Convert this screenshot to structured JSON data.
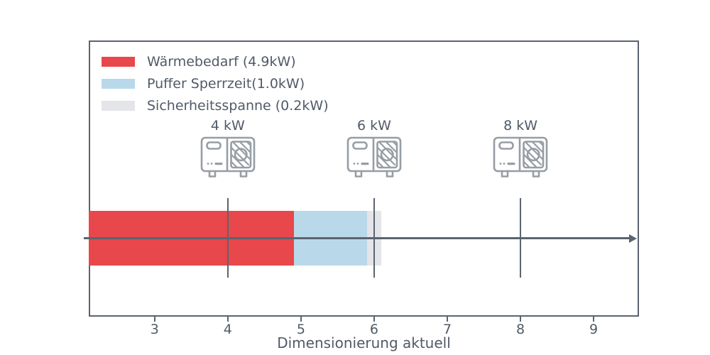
{
  "chart_data": {
    "type": "bar",
    "orientation": "horizontal",
    "stacked": true,
    "title": "",
    "xlabel": "Dimensionierung aktuell",
    "ylabel": "",
    "xlim": [
      2.1,
      9.62
    ],
    "xticks": [
      3,
      4,
      5,
      6,
      7,
      8,
      9
    ],
    "grid": false,
    "legend_position": "upper left",
    "bar": {
      "start": 2.1,
      "segments": [
        {
          "name": "Wärmebedarf",
          "value_kw": 4.9,
          "end": 4.9,
          "label": "Wärmebedarf (4.9kW)",
          "color": "#e8474b"
        },
        {
          "name": "Puffer Sperrzeit",
          "value_kw": 1.0,
          "end": 5.9,
          "label": "Puffer Sperrzeit(1.0kW)",
          "color": "#b9d9ea"
        },
        {
          "name": "Sicherheitsspanne",
          "value_kw": 0.2,
          "end": 6.1,
          "label": "Sicherheitsspanne (0.2kW)",
          "color": "#e3e5e9"
        }
      ]
    },
    "markers": [
      {
        "value": 4,
        "label": "4 kW",
        "icon": "heat-pump-outdoor-unit"
      },
      {
        "value": 6,
        "label": "6 kW",
        "icon": "heat-pump-outdoor-unit"
      },
      {
        "value": 8,
        "label": "8 kW",
        "icon": "heat-pump-outdoor-unit"
      }
    ],
    "axis_arrow": {
      "direction": "right"
    },
    "colors": {
      "axis": "#5b6470",
      "text": "#515a68",
      "icon": "#979da4",
      "background": "#ffffff"
    }
  }
}
